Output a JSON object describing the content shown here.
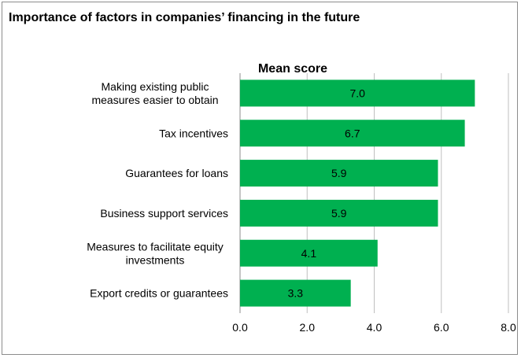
{
  "title": "Importance of factors in companies’ financing in the future",
  "chart_data": {
    "type": "bar",
    "orientation": "horizontal",
    "series_label": "Mean score",
    "categories": [
      [
        "Making existing public",
        "measures easier to obtain"
      ],
      [
        "Tax incentives"
      ],
      [
        "Guarantees for loans"
      ],
      [
        "Business support services"
      ],
      [
        "Measures to facilitate equity",
        "investments"
      ],
      [
        "Export credits or guarantees"
      ]
    ],
    "values": [
      7.0,
      6.7,
      5.9,
      5.9,
      4.1,
      3.3
    ],
    "value_labels": [
      "7.0",
      "6.7",
      "5.9",
      "5.9",
      "4.1",
      "3.3"
    ],
    "xlim": [
      0,
      8
    ],
    "xticks": [
      "0.0",
      "2.0",
      "4.0",
      "6.0",
      "8.0"
    ],
    "grid": "vertical",
    "bar_color": "#00b050",
    "grid_color": "#bfbfbf"
  }
}
